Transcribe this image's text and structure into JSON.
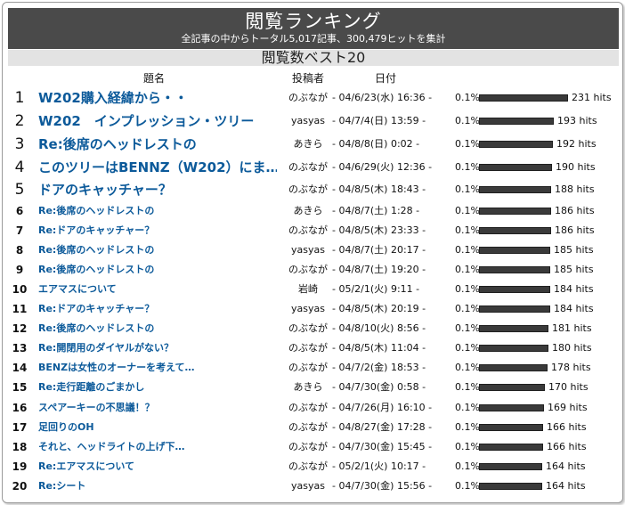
{
  "header": {
    "title": "閲覧ランキング",
    "subtitle": "全記事の中からトータル5,017記事、300,479ヒットを集計"
  },
  "section_title": "閲覧数ベスト20",
  "columns": {
    "title": "題名",
    "author": "投稿者",
    "date": "日付"
  },
  "rows": [
    {
      "rank": "1",
      "title": "W202購入経緯から・・",
      "author": "のぶなが",
      "date": "- 04/6/23(水) 16:36 -",
      "pct": "0.1%",
      "hits_value": 231,
      "hits": "231 hits"
    },
    {
      "rank": "2",
      "title": "W202　インプレッション・ツリー",
      "author": "yasyas",
      "date": "- 04/7/4(日) 13:59 -",
      "pct": "0.1%",
      "hits_value": 193,
      "hits": "193 hits"
    },
    {
      "rank": "3",
      "title": "Re:後席のヘッドレストの",
      "author": "あきら",
      "date": "- 04/8/8(日) 0:02 -",
      "pct": "0.1%",
      "hits_value": 192,
      "hits": "192 hits"
    },
    {
      "rank": "4",
      "title": "このツリーはBENNZ（W202）にま…",
      "author": "のぶなが",
      "date": "- 04/6/29(火) 12:36 -",
      "pct": "0.1%",
      "hits_value": 190,
      "hits": "190 hits"
    },
    {
      "rank": "5",
      "title": "ドアのキャッチャー？",
      "author": "のぶなが",
      "date": "- 04/8/5(木) 18:43 -",
      "pct": "0.1%",
      "hits_value": 188,
      "hits": "188 hits"
    },
    {
      "rank": "6",
      "title": "Re:後席のヘッドレストの",
      "author": "あきら",
      "date": "- 04/8/7(土) 1:28 -",
      "pct": "0.1%",
      "hits_value": 186,
      "hits": "186 hits"
    },
    {
      "rank": "7",
      "title": "Re:ドアのキャッチャー？",
      "author": "のぶなが",
      "date": "- 04/8/5(木) 23:33 -",
      "pct": "0.1%",
      "hits_value": 186,
      "hits": "186 hits"
    },
    {
      "rank": "8",
      "title": "Re:後席のヘッドレストの",
      "author": "yasyas",
      "date": "- 04/8/7(土) 20:17 -",
      "pct": "0.1%",
      "hits_value": 185,
      "hits": "185 hits"
    },
    {
      "rank": "9",
      "title": "Re:後席のヘッドレストの",
      "author": "のぶなが",
      "date": "- 04/8/7(土) 19:20 -",
      "pct": "0.1%",
      "hits_value": 185,
      "hits": "185 hits"
    },
    {
      "rank": "10",
      "title": "エアマスについて",
      "author": "岩崎",
      "date": "- 05/2/1(火) 9:11 -",
      "pct": "0.1%",
      "hits_value": 184,
      "hits": "184 hits"
    },
    {
      "rank": "11",
      "title": "Re:ドアのキャッチャー？",
      "author": "yasyas",
      "date": "- 04/8/5(木) 20:19 -",
      "pct": "0.1%",
      "hits_value": 184,
      "hits": "184 hits"
    },
    {
      "rank": "12",
      "title": "Re:後席のヘッドレストの",
      "author": "のぶなが",
      "date": "- 04/8/10(火) 8:56 -",
      "pct": "0.1%",
      "hits_value": 181,
      "hits": "181 hits"
    },
    {
      "rank": "13",
      "title": "Re:開閉用のダイヤルがない？",
      "author": "のぶなが",
      "date": "- 04/8/5(木) 11:04 -",
      "pct": "0.1%",
      "hits_value": 180,
      "hits": "180 hits"
    },
    {
      "rank": "14",
      "title": "BENZは女性のオーナーを考えて…",
      "author": "のぶなが",
      "date": "- 04/7/2(金) 18:53 -",
      "pct": "0.1%",
      "hits_value": 178,
      "hits": "178 hits"
    },
    {
      "rank": "15",
      "title": "Re:走行距離のごまかし",
      "author": "あきら",
      "date": "- 04/7/30(金) 0:58 -",
      "pct": "0.1%",
      "hits_value": 170,
      "hits": "170 hits"
    },
    {
      "rank": "16",
      "title": "スペアーキーの不思議！？",
      "author": "のぶなが",
      "date": "- 04/7/26(月) 16:10 -",
      "pct": "0.1%",
      "hits_value": 169,
      "hits": "169 hits"
    },
    {
      "rank": "17",
      "title": "足回りのOH",
      "author": "のぶなが",
      "date": "- 04/8/27(金) 17:28 -",
      "pct": "0.1%",
      "hits_value": 166,
      "hits": "166 hits"
    },
    {
      "rank": "18",
      "title": "それと、ヘッドライトの上げ下…",
      "author": "のぶなが",
      "date": "- 04/7/30(金) 15:45 -",
      "pct": "0.1%",
      "hits_value": 166,
      "hits": "166 hits"
    },
    {
      "rank": "19",
      "title": "Re:エアマスについて",
      "author": "のぶなが",
      "date": "- 05/2/1(火) 10:17 -",
      "pct": "0.1%",
      "hits_value": 164,
      "hits": "164 hits"
    },
    {
      "rank": "20",
      "title": "Re:シート",
      "author": "yasyas",
      "date": "- 04/7/30(金) 15:56 -",
      "pct": "0.1%",
      "hits_value": 164,
      "hits": "164 hits"
    }
  ]
}
